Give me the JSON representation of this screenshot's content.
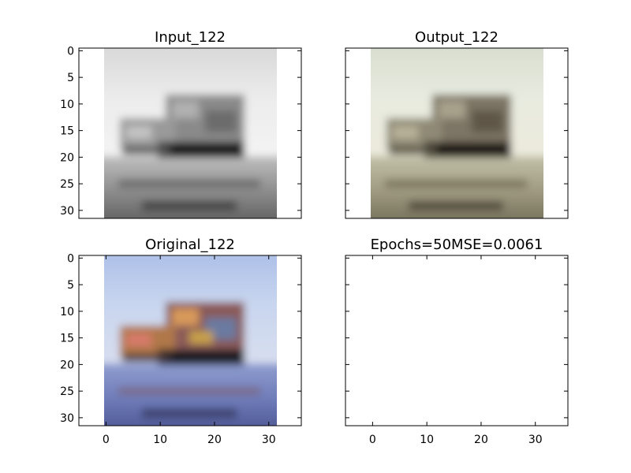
{
  "chart_data": [
    {
      "type": "image",
      "title": "Input_122",
      "xlim": [
        -5,
        36
      ],
      "ylim": [
        31.5,
        -0.5
      ],
      "extent": [
        -0.5,
        31.5,
        31.5,
        -0.5
      ],
      "xticks": [],
      "yticks": [
        0,
        5,
        10,
        15,
        20,
        25,
        30
      ],
      "ytick_labels": [
        "0",
        "5",
        "10",
        "15",
        "20",
        "25",
        "30"
      ],
      "palette": "grayscale"
    },
    {
      "type": "image",
      "title": "Output_122",
      "xlim": [
        -5,
        36
      ],
      "ylim": [
        31.5,
        -0.5
      ],
      "extent": [
        -0.5,
        31.5,
        31.5,
        -0.5
      ],
      "xticks": [],
      "yticks": [
        0,
        5,
        10,
        15,
        20,
        25,
        30
      ],
      "ytick_labels": [],
      "palette": "sepia"
    },
    {
      "type": "image",
      "title": "Original_122",
      "xlim": [
        -5,
        36
      ],
      "ylim": [
        31.5,
        -0.5
      ],
      "extent": [
        -0.5,
        31.5,
        31.5,
        -0.5
      ],
      "xticks": [
        0,
        10,
        20,
        30
      ],
      "xtick_labels": [
        "0",
        "10",
        "20",
        "30"
      ],
      "yticks": [
        0,
        5,
        10,
        15,
        20,
        25,
        30
      ],
      "ytick_labels": [
        "0",
        "5",
        "10",
        "15",
        "20",
        "25",
        "30"
      ],
      "palette": "color"
    },
    {
      "type": "empty",
      "title": "Epochs=50MSE=0.0061",
      "xlim": [
        -5,
        36
      ],
      "ylim": [
        31.5,
        -0.5
      ],
      "xticks": [
        0,
        10,
        20,
        30
      ],
      "xtick_labels": [
        "0",
        "10",
        "20",
        "30"
      ],
      "yticks": [
        0,
        5,
        10,
        15,
        20,
        25,
        30
      ],
      "ytick_labels": []
    }
  ]
}
